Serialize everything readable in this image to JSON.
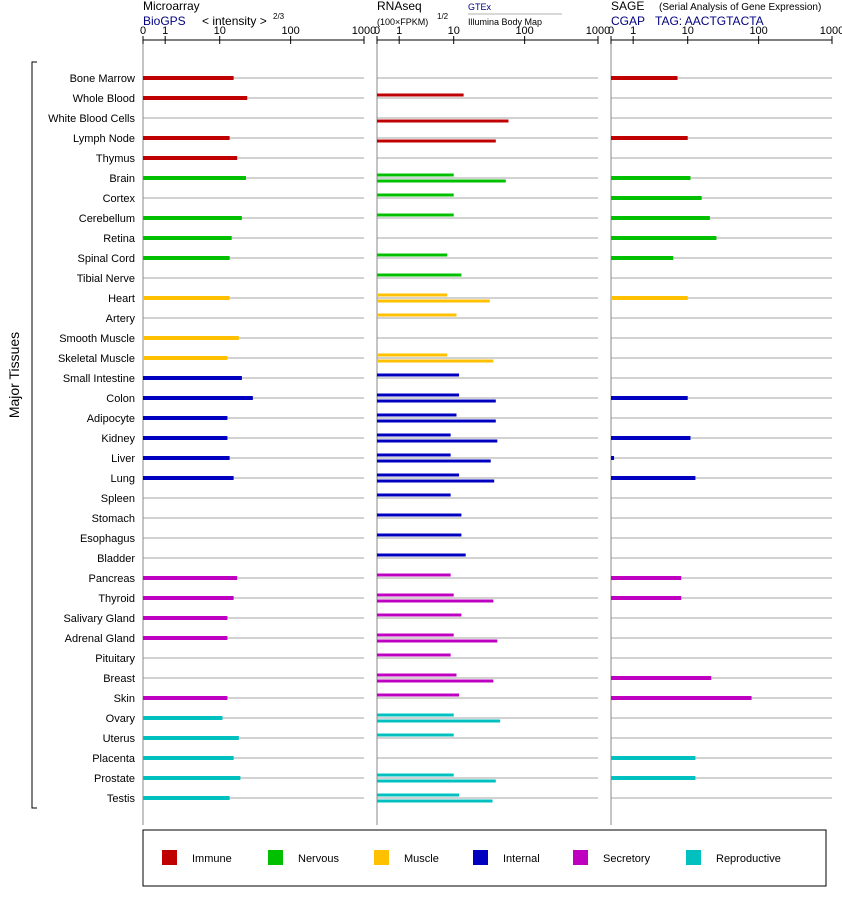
{
  "header": {
    "panel1": {
      "title": "Microarray",
      "source": "BioGPS",
      "measure": "< intensity >",
      "measure_exp": "2/3"
    },
    "panel2": {
      "title": "RNAseq",
      "measure": "(100×FPKM)",
      "measure_exp": "1/2",
      "source": "GTEx",
      "source2": "Illumina Body Map"
    },
    "panel3": {
      "title": "SAGE",
      "subtitle": "(Serial Analysis of Gene Expression)",
      "source": "CGAP",
      "tag": "TAG: AACTGTACTA"
    }
  },
  "ylabel": "Major Tissues",
  "legend": [
    {
      "label": "Immune",
      "color": "#c00000"
    },
    {
      "label": "Nervous",
      "color": "#00c000"
    },
    {
      "label": "Muscle",
      "color": "#ffc000"
    },
    {
      "label": "Internal",
      "color": "#0000c0"
    },
    {
      "label": "Secretory",
      "color": "#c000c0"
    },
    {
      "label": "Reproductive",
      "color": "#00c0c0"
    }
  ],
  "chart_data": {
    "type": "bar",
    "axis_ticks": [
      "0",
      "1",
      "10",
      "100",
      "1000"
    ],
    "tissues": [
      {
        "name": "Bone Marrow",
        "group": "Immune",
        "microarray": 16,
        "rnaseq_gtex": null,
        "rnaseq_ibm": null,
        "sage": 7
      },
      {
        "name": "Whole Blood",
        "group": "Immune",
        "microarray": 25,
        "rnaseq_gtex": 14,
        "rnaseq_ibm": null,
        "sage": null
      },
      {
        "name": "White Blood Cells",
        "group": "Immune",
        "microarray": null,
        "rnaseq_gtex": null,
        "rnaseq_ibm": 60,
        "sage": null
      },
      {
        "name": "Lymph Node",
        "group": "Immune",
        "microarray": 14,
        "rnaseq_gtex": null,
        "rnaseq_ibm": 40,
        "sage": 10
      },
      {
        "name": "Thymus",
        "group": "Immune",
        "microarray": 18,
        "rnaseq_gtex": null,
        "rnaseq_ibm": null,
        "sage": null
      },
      {
        "name": "Brain",
        "group": "Nervous",
        "microarray": 24,
        "rnaseq_gtex": 10,
        "rnaseq_ibm": 55,
        "sage": 11
      },
      {
        "name": "Cortex",
        "group": "Nervous",
        "microarray": null,
        "rnaseq_gtex": 10,
        "rnaseq_ibm": null,
        "sage": 16
      },
      {
        "name": "Cerebellum",
        "group": "Nervous",
        "microarray": 21,
        "rnaseq_gtex": 10,
        "rnaseq_ibm": null,
        "sage": 21
      },
      {
        "name": "Retina",
        "group": "Nervous",
        "microarray": 15,
        "rnaseq_gtex": null,
        "rnaseq_ibm": null,
        "sage": 26
      },
      {
        "name": "Spinal Cord",
        "group": "Nervous",
        "microarray": 14,
        "rnaseq_gtex": 8,
        "rnaseq_ibm": null,
        "sage": 6
      },
      {
        "name": "Tibial Nerve",
        "group": "Nervous",
        "microarray": null,
        "rnaseq_gtex": 13,
        "rnaseq_ibm": null,
        "sage": null
      },
      {
        "name": "Heart",
        "group": "Muscle",
        "microarray": 14,
        "rnaseq_gtex": 8,
        "rnaseq_ibm": 33,
        "sage": 10
      },
      {
        "name": "Artery",
        "group": "Muscle",
        "microarray": null,
        "rnaseq_gtex": 11,
        "rnaseq_ibm": null,
        "sage": null
      },
      {
        "name": "Smooth Muscle",
        "group": "Muscle",
        "microarray": 19,
        "rnaseq_gtex": null,
        "rnaseq_ibm": null,
        "sage": null
      },
      {
        "name": "Skeletal Muscle",
        "group": "Muscle",
        "microarray": 13,
        "rnaseq_gtex": 8,
        "rnaseq_ibm": 37,
        "sage": null
      },
      {
        "name": "Small Intestine",
        "group": "Internal",
        "microarray": 21,
        "rnaseq_gtex": 12,
        "rnaseq_ibm": null,
        "sage": null
      },
      {
        "name": "Colon",
        "group": "Internal",
        "microarray": 30,
        "rnaseq_gtex": 12,
        "rnaseq_ibm": 40,
        "sage": 10
      },
      {
        "name": "Adipocyte",
        "group": "Internal",
        "microarray": 13,
        "rnaseq_gtex": 11,
        "rnaseq_ibm": 40,
        "sage": null
      },
      {
        "name": "Kidney",
        "group": "Internal",
        "microarray": 13,
        "rnaseq_gtex": 9,
        "rnaseq_ibm": 42,
        "sage": 11
      },
      {
        "name": "Liver",
        "group": "Internal",
        "microarray": 14,
        "rnaseq_gtex": 9,
        "rnaseq_ibm": 34,
        "sage": 0.1
      },
      {
        "name": "Lung",
        "group": "Internal",
        "microarray": 16,
        "rnaseq_gtex": 12,
        "rnaseq_ibm": 38,
        "sage": 13
      },
      {
        "name": "Spleen",
        "group": "Internal",
        "microarray": null,
        "rnaseq_gtex": 9,
        "rnaseq_ibm": null,
        "sage": null
      },
      {
        "name": "Stomach",
        "group": "Internal",
        "microarray": null,
        "rnaseq_gtex": 13,
        "rnaseq_ibm": null,
        "sage": null
      },
      {
        "name": "Esophagus",
        "group": "Internal",
        "microarray": null,
        "rnaseq_gtex": 13,
        "rnaseq_ibm": null,
        "sage": null
      },
      {
        "name": "Bladder",
        "group": "Internal",
        "microarray": null,
        "rnaseq_gtex": 15,
        "rnaseq_ibm": null,
        "sage": null
      },
      {
        "name": "Pancreas",
        "group": "Secretory",
        "microarray": 18,
        "rnaseq_gtex": 9,
        "rnaseq_ibm": null,
        "sage": 8
      },
      {
        "name": "Thyroid",
        "group": "Secretory",
        "microarray": 16,
        "rnaseq_gtex": 10,
        "rnaseq_ibm": 37,
        "sage": 8
      },
      {
        "name": "Salivary Gland",
        "group": "Secretory",
        "microarray": 13,
        "rnaseq_gtex": 13,
        "rnaseq_ibm": null,
        "sage": null
      },
      {
        "name": "Adrenal Gland",
        "group": "Secretory",
        "microarray": 13,
        "rnaseq_gtex": 10,
        "rnaseq_ibm": 42,
        "sage": null
      },
      {
        "name": "Pituitary",
        "group": "Secretory",
        "microarray": null,
        "rnaseq_gtex": 9,
        "rnaseq_ibm": null,
        "sage": null
      },
      {
        "name": "Breast",
        "group": "Secretory",
        "microarray": null,
        "rnaseq_gtex": 11,
        "rnaseq_ibm": 37,
        "sage": 22
      },
      {
        "name": "Skin",
        "group": "Secretory",
        "microarray": 13,
        "rnaseq_gtex": 12,
        "rnaseq_ibm": null,
        "sage": 80
      },
      {
        "name": "Ovary",
        "group": "Reproductive",
        "microarray": 11,
        "rnaseq_gtex": 10,
        "rnaseq_ibm": 46,
        "sage": null
      },
      {
        "name": "Uterus",
        "group": "Reproductive",
        "microarray": 19,
        "rnaseq_gtex": 10,
        "rnaseq_ibm": null,
        "sage": null
      },
      {
        "name": "Placenta",
        "group": "Reproductive",
        "microarray": 16,
        "rnaseq_gtex": null,
        "rnaseq_ibm": null,
        "sage": 13
      },
      {
        "name": "Prostate",
        "group": "Reproductive",
        "microarray": 20,
        "rnaseq_gtex": 10,
        "rnaseq_ibm": 40,
        "sage": 13
      },
      {
        "name": "Testis",
        "group": "Reproductive",
        "microarray": 14,
        "rnaseq_gtex": 12,
        "rnaseq_ibm": 36,
        "sage": null
      }
    ]
  }
}
